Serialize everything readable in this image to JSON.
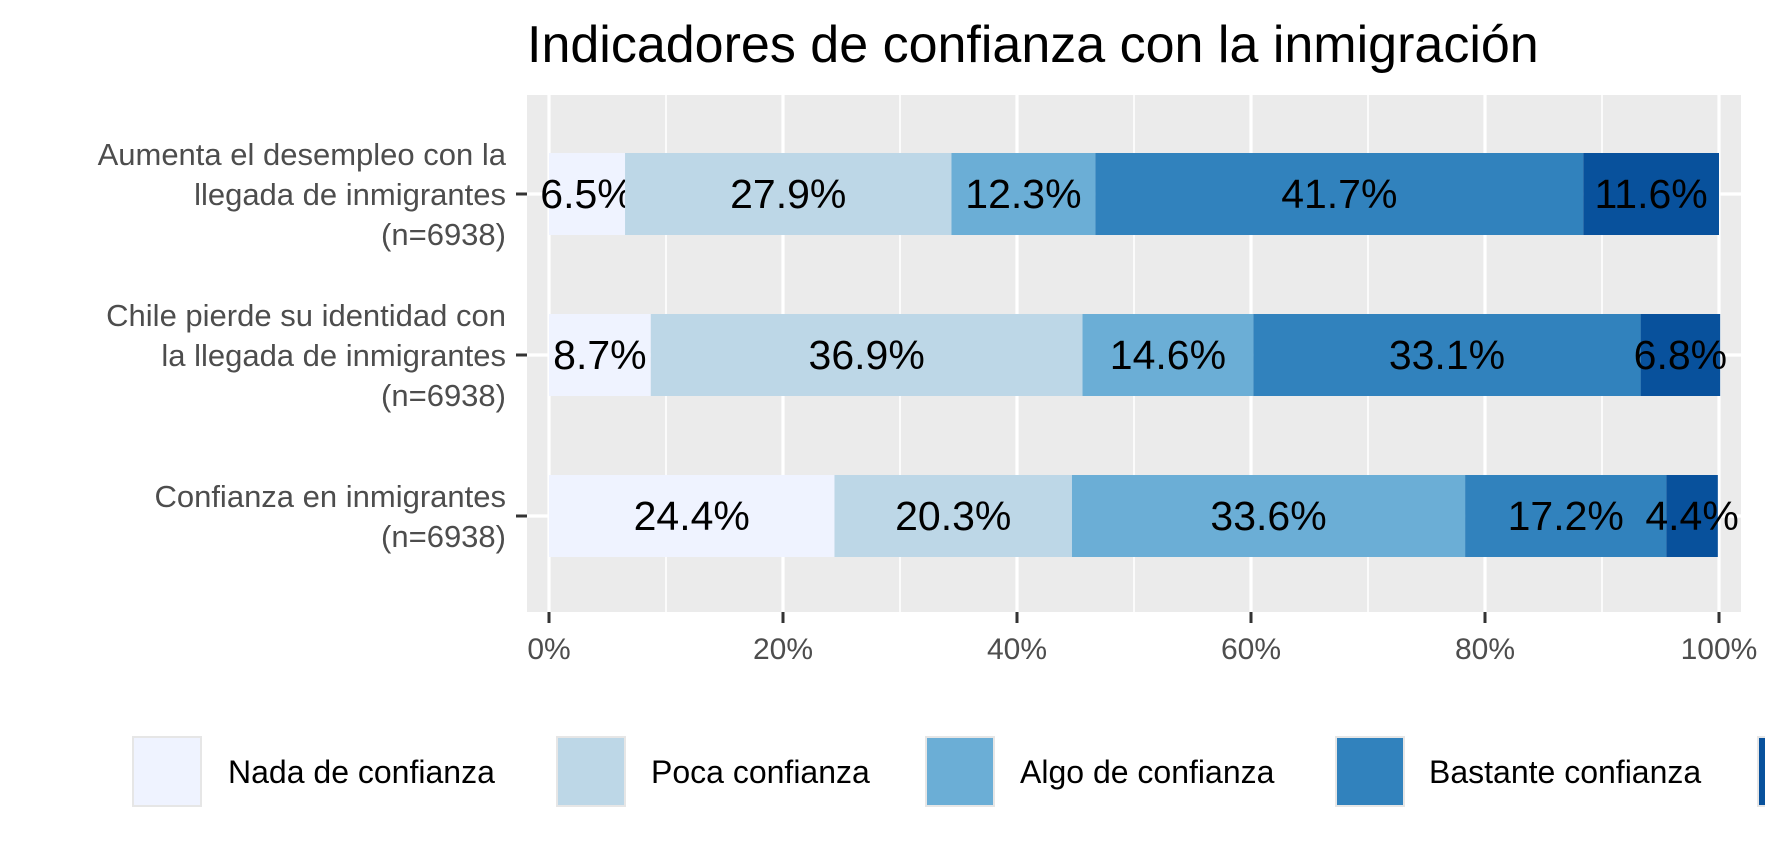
{
  "chart_data": {
    "type": "bar",
    "orientation": "horizontal",
    "stacked": true,
    "title": "Indicadores de confianza con la inmigración",
    "xlabel": "",
    "ylabel": "",
    "xlim": [
      0,
      100
    ],
    "x_ticks": [
      "0%",
      "20%",
      "40%",
      "60%",
      "80%",
      "100%"
    ],
    "categories": [
      [
        "Aumenta el desempleo con la",
        "llegada de inmigrantes",
        "(n=6938)"
      ],
      [
        "Chile pierde su identidad con",
        "la llegada de inmigrantes",
        "(n=6938)"
      ],
      [
        "Confianza en inmigrantes",
        "(n=6938)"
      ]
    ],
    "series": [
      {
        "name": "Nada de confianza",
        "color": "#eff3ff",
        "values": [
          6.5,
          8.7,
          24.4
        ],
        "labels": [
          "6.5%",
          "8.7%",
          "24.4%"
        ]
      },
      {
        "name": "Poca confianza",
        "color": "#bdd7e7",
        "values": [
          27.9,
          36.9,
          20.3
        ],
        "labels": [
          "27.9%",
          "36.9%",
          "20.3%"
        ]
      },
      {
        "name": "Algo de confianza",
        "color": "#6baed6",
        "values": [
          12.3,
          14.6,
          33.6
        ],
        "labels": [
          "12.3%",
          "14.6%",
          "33.6%"
        ]
      },
      {
        "name": "Bastante confianza",
        "color": "#3182bd",
        "values": [
          41.7,
          33.1,
          17.2
        ],
        "labels": [
          "41.7%",
          "33.1%",
          "17.2%"
        ]
      },
      {
        "name": "",
        "color": "#08519c",
        "values": [
          11.6,
          6.8,
          4.4
        ],
        "labels": [
          "11.6%",
          "6.8%",
          "4.4%"
        ]
      }
    ],
    "grid": true,
    "legend_position": "bottom",
    "panel_background": "#ebebeb"
  }
}
